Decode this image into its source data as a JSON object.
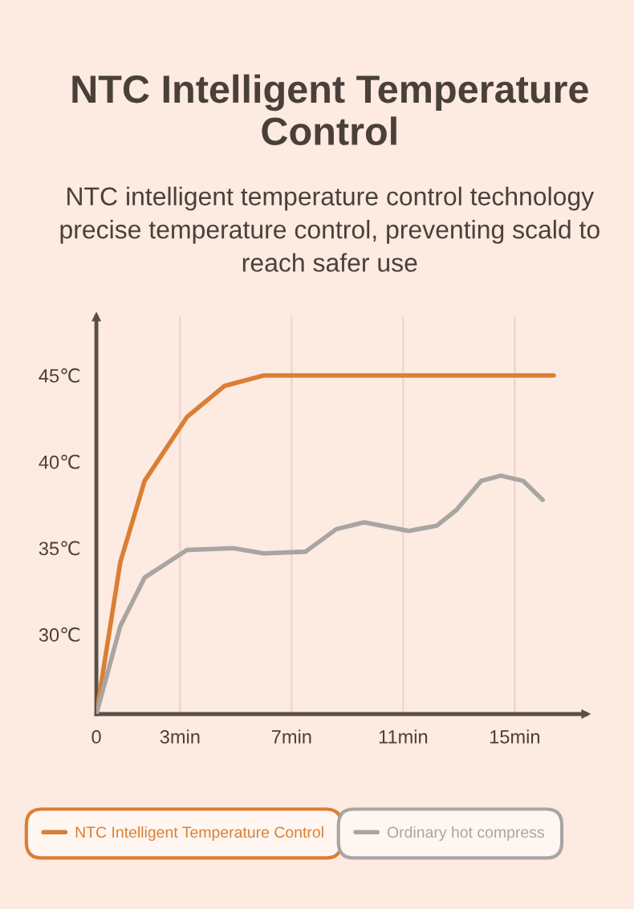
{
  "chart_data": {
    "type": "line",
    "title": "NTC Intelligent Temperature Control",
    "subtitle": "NTC intelligent temperature control technology precise temperature control, preventing scald to reach safer use",
    "xlim": [
      0,
      17.55
    ],
    "ylim": [
      25.4,
      48.4
    ],
    "xticks": [
      {
        "value": 0,
        "label": "0"
      },
      {
        "value": 3,
        "label": "3min"
      },
      {
        "value": 7,
        "label": "7min"
      },
      {
        "value": 11,
        "label": "11min"
      },
      {
        "value": 15,
        "label": "15min"
      }
    ],
    "yticks": [
      {
        "value": 30,
        "label": "30℃"
      },
      {
        "value": 35,
        "label": "35℃"
      },
      {
        "value": 40,
        "label": "40℃"
      },
      {
        "value": 45,
        "label": "45℃"
      }
    ],
    "grid": "x",
    "legend": "bottom",
    "marker": "none",
    "line_style": "solid",
    "series": [
      {
        "name": "NTC Intelligent Temperature Control",
        "color": "#d97f35",
        "x": [
          0,
          0.86,
          1.73,
          3.25,
          4.6,
          6.0,
          16.4
        ],
        "values": [
          25.4,
          34.2,
          38.9,
          42.6,
          44.4,
          45.0,
          45.0
        ]
      },
      {
        "name": "Ordinary hot compress",
        "color": "#a8a5a3",
        "x": [
          0,
          0.86,
          1.73,
          3.25,
          4.9,
          6.0,
          7.5,
          8.6,
          9.6,
          11.2,
          12.2,
          12.9,
          13.8,
          14.5,
          15.3,
          16.0
        ],
        "values": [
          25.4,
          30.5,
          33.3,
          34.9,
          35.0,
          34.7,
          34.8,
          36.1,
          36.5,
          36.0,
          36.3,
          37.2,
          38.9,
          39.2,
          38.9,
          37.8
        ]
      }
    ]
  }
}
